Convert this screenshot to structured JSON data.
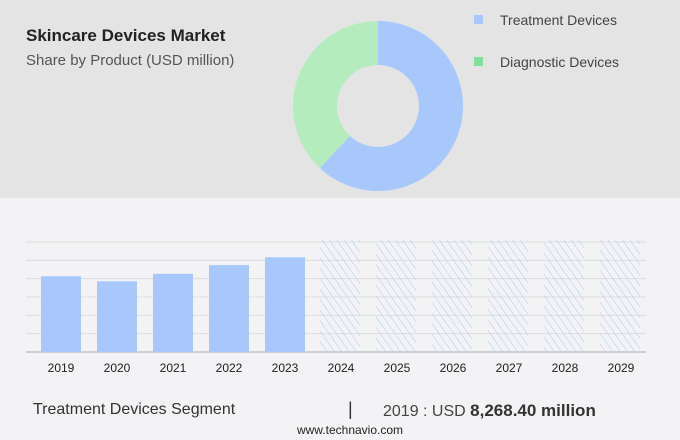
{
  "title": "Skincare Devices Market",
  "subtitle": "Share by Product (USD million)",
  "colors": {
    "treatment": "#a8c8fc",
    "diagnostic": "#b5ecbe",
    "diagnostic_legend": "#7ee09a",
    "grid": "#dcdcdc"
  },
  "chart_data": [
    {
      "type": "pie",
      "donut": true,
      "slices": [
        {
          "name": "Treatment Devices",
          "share": 62
        },
        {
          "name": "Diagnostic Devices",
          "share": 38
        }
      ],
      "legend": "top-right"
    },
    {
      "type": "bar",
      "categories": [
        "2019",
        "2020",
        "2021",
        "2022",
        "2023",
        "2024",
        "2025",
        "2026",
        "2027",
        "2028",
        "2029"
      ],
      "values": [
        8268.4,
        7712,
        8530,
        9480,
        10330,
        null,
        null,
        null,
        null,
        null,
        null
      ],
      "forecast_categories": [
        "2024",
        "2025",
        "2026",
        "2027",
        "2028",
        "2029"
      ],
      "ylim": [
        0,
        12000
      ],
      "grid": true
    }
  ],
  "footer": {
    "segment": "Treatment Devices Segment",
    "separator": "|",
    "year_label": "2019 : USD ",
    "value": "8,268.40 million",
    "url": "www.technavio.com"
  }
}
